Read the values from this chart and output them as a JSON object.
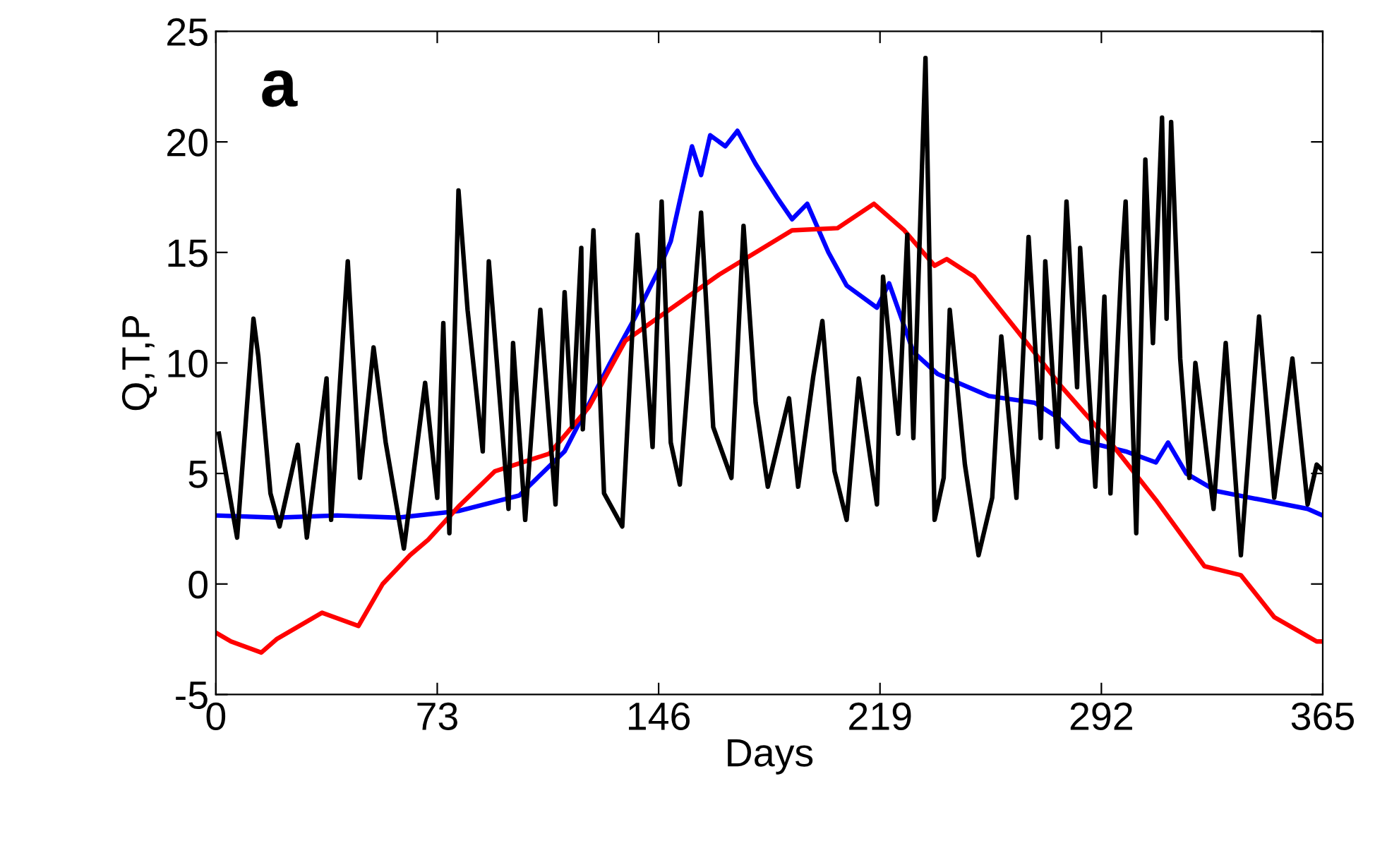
{
  "chart_data": {
    "type": "line",
    "xlabel": "Days",
    "ylabel": "Q,T,P",
    "annotations": [
      "a"
    ],
    "xlim": [
      0,
      365
    ],
    "ylim": [
      -5,
      25
    ],
    "xticks": [
      0,
      73,
      146,
      219,
      292,
      365
    ],
    "yticks": [
      -5,
      0,
      5,
      10,
      15,
      20,
      25
    ],
    "grid": false,
    "legend": false,
    "marker": "none",
    "line_style": "solid",
    "series": [
      {
        "color": "#0000ff",
        "x": [
          0,
          20,
          40,
          60,
          80,
          100,
          115,
          130,
          138,
          146,
          150,
          157,
          160,
          163,
          168,
          172,
          178,
          185,
          190,
          195,
          202,
          208,
          218,
          222,
          230,
          238,
          255,
          270,
          278,
          285,
          300,
          310,
          314,
          320,
          330,
          345,
          360,
          365
        ],
        "values": [
          3.1,
          3.0,
          3.1,
          3.0,
          3.3,
          4.0,
          6.0,
          10.0,
          12.0,
          14.2,
          15.5,
          19.8,
          18.5,
          20.3,
          19.8,
          20.5,
          19.0,
          17.5,
          16.5,
          17.2,
          15.0,
          13.5,
          12.5,
          13.6,
          10.5,
          9.5,
          8.5,
          8.2,
          7.5,
          6.5,
          6.0,
          5.5,
          6.4,
          5.0,
          4.2,
          3.8,
          3.4,
          3.1
        ]
      },
      {
        "color": "#ff0000",
        "x": [
          0,
          5,
          15,
          20,
          35,
          47,
          55,
          64,
          70,
          80,
          92,
          110,
          123,
          135,
          166,
          190,
          205,
          217,
          227,
          237,
          241,
          250,
          264,
          279,
          295,
          310,
          326,
          338,
          349,
          363,
          365
        ],
        "values": [
          -2.2,
          -2.6,
          -3.1,
          -2.5,
          -1.3,
          -1.9,
          0.0,
          1.3,
          2.0,
          3.5,
          5.1,
          5.9,
          8.0,
          11.0,
          14.0,
          16.0,
          16.1,
          17.2,
          16.0,
          14.4,
          14.7,
          13.9,
          11.5,
          8.9,
          6.4,
          3.8,
          0.8,
          0.4,
          -1.5,
          -2.6,
          -2.6
        ]
      },
      {
        "color": "#000000",
        "x": [
          1,
          7,
          12.4,
          14,
          18,
          21,
          27,
          30,
          36.5,
          38,
          43.5,
          47.5,
          52,
          56,
          62,
          65,
          69,
          73,
          75,
          77,
          80,
          83,
          88,
          90,
          96.5,
          98,
          102,
          107,
          112,
          115,
          117.5,
          120.5,
          121,
          124.5,
          128,
          134,
          139,
          144,
          147,
          150,
          153,
          160,
          164,
          170,
          174,
          178,
          182,
          189,
          192,
          197,
          200,
          204,
          208,
          212,
          218,
          220,
          225,
          228,
          230,
          234,
          237,
          240,
          242,
          247,
          251.5,
          256,
          259,
          264,
          268,
          272,
          273.5,
          277.5,
          280.5,
          284,
          285,
          290,
          293,
          295,
          298.5,
          300,
          303.5,
          306.5,
          309,
          312,
          313.5,
          315,
          318,
          321,
          323,
          329,
          333,
          338,
          344,
          349,
          355,
          360,
          363,
          364.5
        ],
        "values": [
          6.8,
          2.1,
          12.0,
          10.3,
          4.1,
          2.6,
          6.3,
          2.1,
          9.3,
          2.9,
          14.6,
          4.8,
          10.7,
          6.4,
          1.6,
          4.8,
          9.1,
          3.9,
          11.8,
          2.3,
          17.8,
          12.4,
          6.0,
          14.6,
          3.4,
          10.9,
          2.9,
          12.4,
          3.6,
          13.2,
          7.1,
          15.2,
          7.0,
          16.0,
          4.1,
          2.6,
          15.8,
          6.2,
          17.3,
          6.4,
          4.5,
          16.8,
          7.1,
          4.8,
          16.2,
          8.2,
          4.4,
          8.4,
          4.4,
          9.4,
          11.9,
          5.1,
          2.9,
          9.3,
          3.6,
          13.9,
          6.8,
          15.8,
          6.6,
          23.8,
          2.9,
          4.8,
          12.4,
          5.4,
          1.3,
          3.9,
          11.2,
          3.9,
          15.7,
          6.6,
          14.6,
          6.2,
          17.3,
          8.9,
          15.2,
          4.4,
          13.0,
          4.1,
          14.1,
          17.3,
          2.3,
          19.2,
          10.9,
          21.1,
          12.0,
          20.9,
          10.2,
          4.8,
          10.0,
          3.4,
          10.9,
          1.3,
          12.1,
          3.9,
          10.2,
          3.6,
          5.4,
          5.2
        ]
      }
    ]
  }
}
